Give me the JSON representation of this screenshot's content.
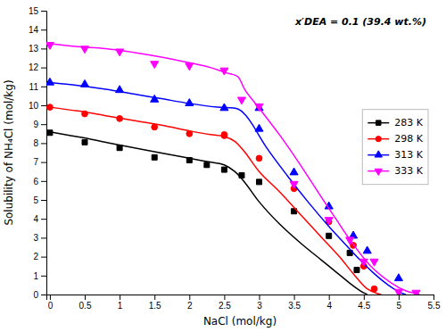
{
  "chart_data": {
    "type": "scatter",
    "xlabel": "NaCl (mol/kg)",
    "ylabel": "Solubility of NH₄Cl (mol/kg)",
    "annotation": "x′DEA = 0.1 (39.4 wt.%)",
    "xlim": [
      -0.05,
      5.5
    ],
    "ylim": [
      0,
      15
    ],
    "xticks": [
      0,
      0.5,
      1,
      1.5,
      2,
      2.5,
      3,
      3.5,
      4,
      4.5,
      5,
      5.5
    ],
    "yticks": [
      0,
      1,
      2,
      3,
      4,
      5,
      6,
      7,
      8,
      9,
      10,
      11,
      12,
      13,
      14,
      15
    ],
    "grid": false,
    "legend": "right",
    "series": [
      {
        "type": "scatter",
        "name": "283 K",
        "color": "black",
        "marker": "square",
        "x": [
          0.0,
          0.5,
          1.0,
          1.5,
          2.0,
          2.25,
          2.5,
          2.75,
          3.0,
          3.5,
          4.0,
          4.3,
          4.4
        ],
        "values": [
          8.55,
          8.05,
          7.75,
          7.25,
          7.1,
          6.85,
          6.6,
          6.3,
          5.95,
          4.4,
          3.1,
          2.2,
          1.3
        ]
      },
      {
        "type": "line",
        "color": "black",
        "line_style": "solid",
        "x": [
          0.0,
          0.3,
          0.6,
          1.0,
          1.5,
          2.0,
          2.3,
          2.5,
          2.65,
          2.8,
          3.0,
          3.3,
          3.6,
          3.9,
          4.1,
          4.3,
          4.45,
          4.55
        ],
        "values": [
          8.6,
          8.4,
          8.2,
          7.9,
          7.55,
          7.2,
          7.0,
          6.85,
          6.5,
          5.9,
          4.9,
          3.7,
          2.7,
          1.8,
          1.2,
          0.6,
          0.2,
          0.0
        ]
      },
      {
        "type": "scatter",
        "name": "298 K",
        "color": "red",
        "marker": "circle",
        "x": [
          0.0,
          0.5,
          1.0,
          1.5,
          2.0,
          2.5,
          2.5,
          3.0,
          3.5,
          4.0,
          4.35,
          4.5,
          4.65
        ],
        "values": [
          9.9,
          9.55,
          9.3,
          8.85,
          8.5,
          8.45,
          8.4,
          7.2,
          5.6,
          3.85,
          2.6,
          1.5,
          0.3
        ]
      },
      {
        "type": "line",
        "color": "red",
        "line_style": "solid",
        "x": [
          0.0,
          0.4,
          0.8,
          1.2,
          1.6,
          2.0,
          2.3,
          2.5,
          2.65,
          2.8,
          3.0,
          3.3,
          3.6,
          3.9,
          4.15,
          4.35,
          4.55,
          4.7,
          4.75
        ],
        "values": [
          9.9,
          9.7,
          9.45,
          9.2,
          8.95,
          8.65,
          8.45,
          8.35,
          8.1,
          7.5,
          6.5,
          5.4,
          4.2,
          3.0,
          2.0,
          1.1,
          0.3,
          0.05,
          0.0
        ]
      },
      {
        "type": "scatter",
        "name": "313 K",
        "color": "blue",
        "marker": "triangle-up",
        "x": [
          0.0,
          0.5,
          1.0,
          1.5,
          2.0,
          2.5,
          3.0,
          3.0,
          3.5,
          4.0,
          4.35,
          4.55,
          5.0
        ],
        "values": [
          11.2,
          11.1,
          10.8,
          10.3,
          10.1,
          9.85,
          9.85,
          8.75,
          6.45,
          4.65,
          3.1,
          2.3,
          0.85
        ]
      },
      {
        "type": "line",
        "color": "blue",
        "line_style": "solid",
        "x": [
          0.0,
          0.4,
          0.8,
          1.2,
          1.6,
          2.0,
          2.4,
          2.7,
          2.8,
          2.9,
          3.1,
          3.4,
          3.7,
          4.0,
          4.2,
          4.4,
          4.65,
          4.85,
          5.0,
          5.1
        ],
        "values": [
          11.2,
          11.05,
          10.85,
          10.6,
          10.35,
          10.1,
          9.9,
          9.8,
          9.5,
          9.0,
          7.8,
          6.3,
          4.9,
          3.6,
          2.8,
          2.0,
          1.1,
          0.5,
          0.15,
          0.0
        ]
      },
      {
        "type": "scatter",
        "name": "333 K",
        "color": "magenta",
        "marker": "triangle-down",
        "x": [
          0.0,
          0.5,
          1.0,
          1.5,
          2.0,
          2.5,
          2.75,
          3.0,
          3.5,
          4.0,
          4.3,
          4.5,
          4.65,
          5.0,
          5.25
        ],
        "values": [
          13.2,
          13.0,
          12.85,
          12.2,
          12.1,
          11.85,
          10.3,
          9.95,
          5.85,
          3.95,
          2.9,
          1.75,
          1.75,
          0.15,
          0.1
        ]
      },
      {
        "type": "line",
        "color": "magenta",
        "line_style": "solid",
        "x": [
          0.0,
          0.4,
          0.8,
          1.2,
          1.6,
          2.0,
          2.3,
          2.5,
          2.6,
          2.65,
          2.7,
          2.8,
          3.0,
          3.3,
          3.6,
          3.9,
          4.1,
          4.3,
          4.6,
          4.9,
          5.1,
          5.25,
          5.3
        ],
        "values": [
          13.25,
          13.1,
          13.0,
          12.8,
          12.55,
          12.25,
          12.0,
          11.75,
          11.65,
          11.6,
          11.5,
          10.8,
          9.85,
          8.4,
          6.8,
          5.1,
          4.0,
          2.9,
          1.5,
          0.6,
          0.2,
          0.05,
          0.0
        ]
      }
    ]
  }
}
